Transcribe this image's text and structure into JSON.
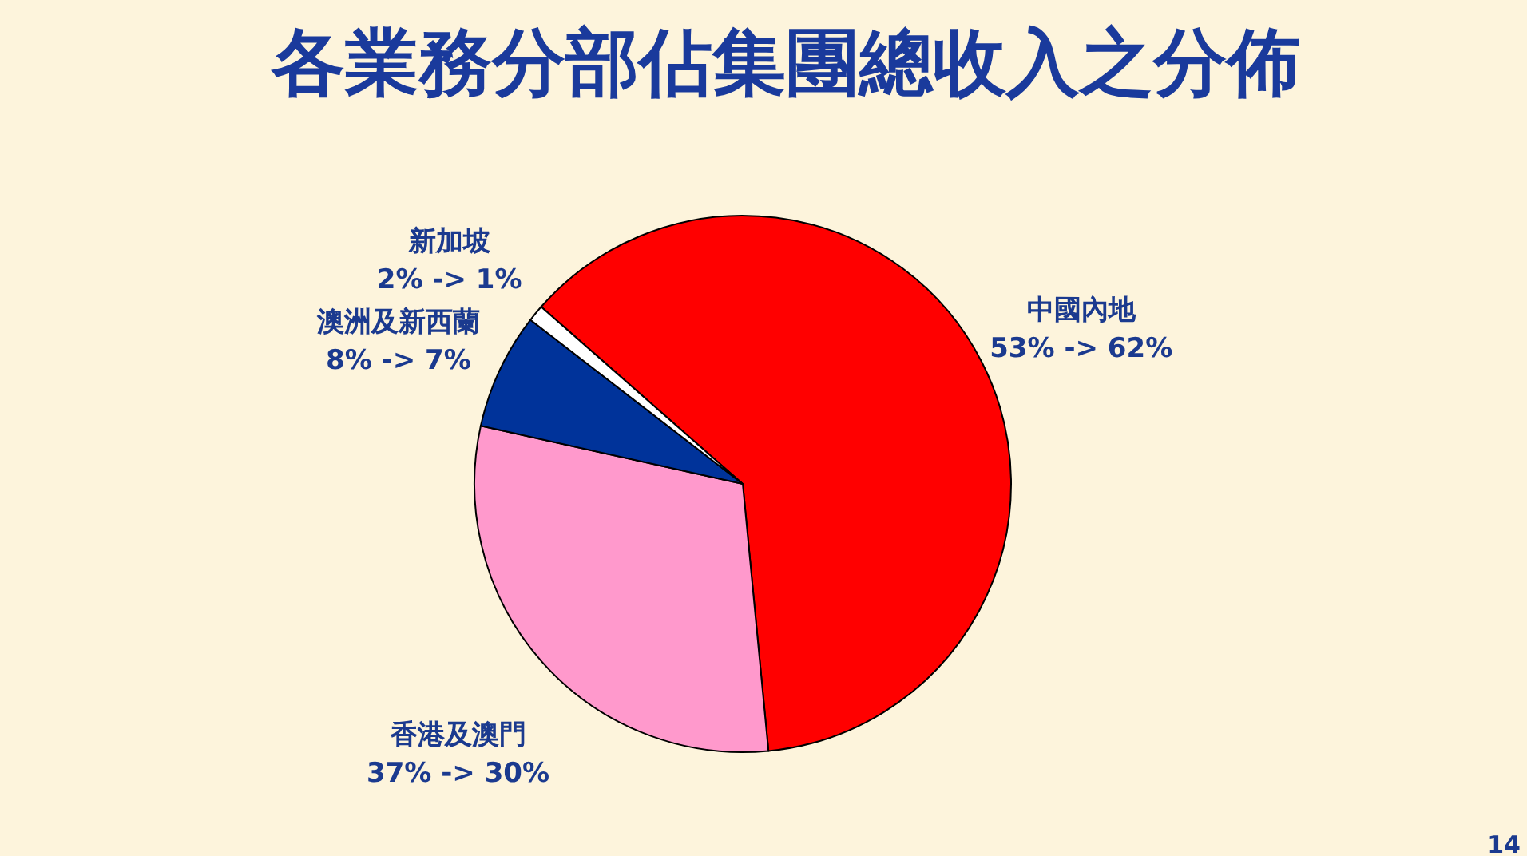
{
  "chart_data": {
    "type": "pie",
    "title": "各業務分部佔集團總收入之分佈",
    "categories": [
      "中國內地",
      "香港及澳門",
      "澳洲及新西蘭",
      "新加坡"
    ],
    "values": [
      62,
      30,
      7,
      1
    ],
    "colors": [
      "#ff0000",
      "#ff99cc",
      "#00339a",
      "#ffffff"
    ],
    "value_labels": [
      "53% -> 62%",
      "37% -> 30%",
      "8% -> 7%",
      "2% -> 1%"
    ],
    "annotations": [
      "14"
    ]
  }
}
